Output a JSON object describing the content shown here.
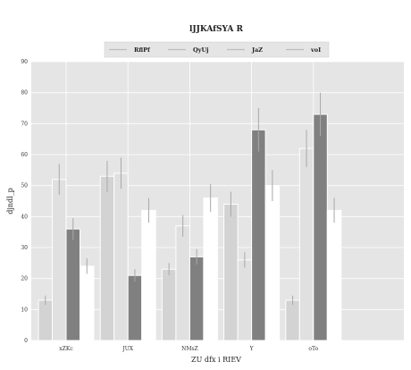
{
  "chart_data": {
    "type": "bar",
    "title": "lJJKAfSYA R",
    "xlabel": "ZU dfx i RIEV",
    "ylabel": "djndl_p",
    "categories": [
      "xZKc",
      "JUX",
      "NMsZ",
      "Y",
      "oTo"
    ],
    "ylim": [
      0,
      90
    ],
    "yticks": [
      0,
      10,
      20,
      30,
      40,
      50,
      60,
      70,
      80,
      90
    ],
    "grid": true,
    "legend_position": "top-center",
    "series": [
      {
        "name": "RflPf",
        "color": "#d3d3d3",
        "values": [
          13,
          53,
          23,
          44,
          13
        ],
        "errors": [
          1.5,
          5,
          2,
          4,
          1.5
        ]
      },
      {
        "name": "QyUj",
        "color": "#e0e0e0",
        "values": [
          52,
          54,
          37,
          26,
          62
        ],
        "errors": [
          5,
          5,
          3.5,
          2.5,
          6
        ]
      },
      {
        "name": "JaZ",
        "color": "#808080",
        "values": [
          36,
          21,
          27,
          68,
          73
        ],
        "errors": [
          3.5,
          2,
          2.5,
          7,
          7
        ]
      },
      {
        "name": "voI",
        "color": "#ffffff",
        "values": [
          24,
          42,
          46,
          50,
          42
        ],
        "errors": [
          2.5,
          4,
          4.5,
          5,
          4
        ]
      }
    ]
  }
}
